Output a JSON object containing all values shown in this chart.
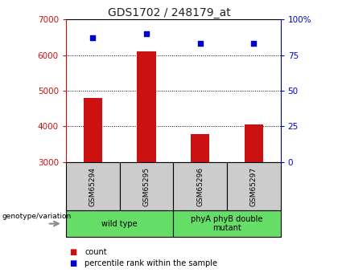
{
  "title": "GDS1702 / 248179_at",
  "samples": [
    "GSM65294",
    "GSM65295",
    "GSM65296",
    "GSM65297"
  ],
  "counts": [
    4800,
    6100,
    3780,
    4050
  ],
  "percentiles": [
    87,
    90,
    83,
    83
  ],
  "ylim_left": [
    3000,
    7000
  ],
  "ylim_right": [
    0,
    100
  ],
  "yticks_left": [
    3000,
    4000,
    5000,
    6000,
    7000
  ],
  "yticks_right": [
    0,
    25,
    50,
    75,
    100
  ],
  "bar_color": "#cc1111",
  "square_color": "#0000cc",
  "groups": [
    {
      "label": "wild type",
      "samples": [
        0,
        1
      ]
    },
    {
      "label": "phyA phyB double\nmutant",
      "samples": [
        2,
        3
      ]
    }
  ],
  "group_bg_color": "#66dd66",
  "sample_bg_color": "#cccccc",
  "title_color": "#222222",
  "left_axis_color": "#cc1111",
  "right_axis_color": "#0000cc",
  "legend_count_label": "count",
  "legend_percentile_label": "percentile rank within the sample",
  "genotype_label": "genotype/variation"
}
